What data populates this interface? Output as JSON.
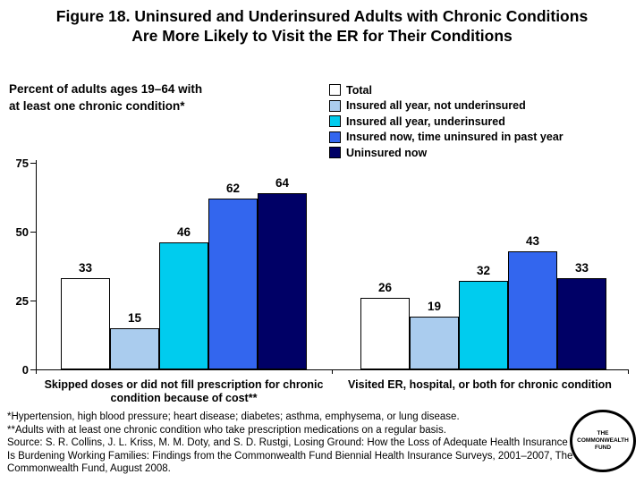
{
  "title": {
    "line1": "Figure 18. Uninsured and Underinsured Adults with Chronic Conditions",
    "line2": "Are More Likely to Visit the ER for Their Conditions"
  },
  "subtitle": {
    "line1": "Percent of adults ages 19–64 with",
    "line2": "at least one chronic condition*"
  },
  "legend": {
    "items": [
      {
        "label": "Total",
        "color": "#FFFFFF"
      },
      {
        "label": "Insured all year, not underinsured",
        "color": "#AACCEE"
      },
      {
        "label": "Insured all year, underinsured",
        "color": "#00CCEE"
      },
      {
        "label": "Insured now, time uninsured in past year",
        "color": "#3366EE"
      },
      {
        "label": "Uninsured now",
        "color": "#000066"
      }
    ]
  },
  "chart_data": {
    "type": "bar",
    "categories": [
      "Skipped doses or did not fill prescription for chronic condition because of cost**",
      "Visited ER, hospital, or both for  chronic condition"
    ],
    "series": [
      {
        "name": "Total",
        "color": "#FFFFFF",
        "values": [
          33,
          26
        ]
      },
      {
        "name": "Insured all year, not underinsured",
        "color": "#AACCEE",
        "values": [
          15,
          19
        ]
      },
      {
        "name": "Insured all year, underinsured",
        "color": "#00CCEE",
        "values": [
          46,
          32
        ]
      },
      {
        "name": "Insured now, time uninsured in past year",
        "color": "#3366EE",
        "values": [
          62,
          43
        ]
      },
      {
        "name": "Uninsured now",
        "color": "#000066",
        "values": [
          64,
          33
        ]
      }
    ],
    "title": "Figure 18. Uninsured and Underinsured Adults with Chronic Conditions Are More Likely to Visit the ER for Their Conditions",
    "xlabel": "",
    "ylabel": "Percent of adults ages 19–64 with at least one chronic condition*",
    "ylim": [
      0,
      75
    ],
    "yticks": [
      0,
      25,
      50,
      75
    ],
    "grid": false,
    "legend_position": "top-right",
    "data_labels": true
  },
  "footnotes": [
    "*Hypertension, high blood pressure; heart disease; diabetes; asthma, emphysema, or lung disease.",
    "**Adults with at least one chronic condition who take prescription medications on a regular basis.",
    "Source: S. R. Collins, J. L. Kriss, M. M. Doty, and S. D. Rustgi, Losing Ground: How the Loss of Adequate Health Insurance Is Burdening Working Families: Findings from the Commonwealth Fund Biennial Health Insurance Surveys, 2001–2007, The Commonwealth Fund, August 2008."
  ],
  "logo": {
    "line1": "THE",
    "line2": "COMMONWEALTH",
    "line3": "FUND"
  }
}
